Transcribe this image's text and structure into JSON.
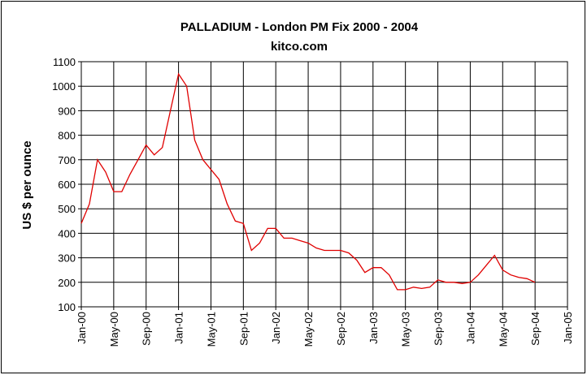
{
  "chart_data": {
    "type": "line",
    "title": "PALLADIUM - London PM Fix 2000 - 2004",
    "subtitle": "kitco.com",
    "y_label": "US $ per ounce",
    "x": [
      "2000-01",
      "2000-02",
      "2000-03",
      "2000-04",
      "2000-05",
      "2000-06",
      "2000-07",
      "2000-08",
      "2000-09",
      "2000-10",
      "2000-11",
      "2000-12",
      "2001-01",
      "2001-02",
      "2001-03",
      "2001-04",
      "2001-05",
      "2001-06",
      "2001-07",
      "2001-08",
      "2001-09",
      "2001-10",
      "2001-11",
      "2001-12",
      "2002-01",
      "2002-02",
      "2002-03",
      "2002-04",
      "2002-05",
      "2002-06",
      "2002-07",
      "2002-08",
      "2002-09",
      "2002-10",
      "2002-11",
      "2002-12",
      "2003-01",
      "2003-02",
      "2003-03",
      "2003-04",
      "2003-05",
      "2003-06",
      "2003-07",
      "2003-08",
      "2003-09",
      "2003-10",
      "2003-11",
      "2003-12",
      "2004-01",
      "2004-02",
      "2004-03",
      "2004-04",
      "2004-05",
      "2004-06",
      "2004-07",
      "2004-08",
      "2004-09"
    ],
    "series": [
      {
        "name": "Palladium",
        "color": "#e00000",
        "values": [
          440,
          520,
          700,
          650,
          570,
          570,
          640,
          700,
          760,
          720,
          750,
          900,
          1050,
          1000,
          780,
          700,
          660,
          620,
          520,
          450,
          440,
          330,
          360,
          420,
          420,
          380,
          380,
          370,
          360,
          340,
          330,
          330,
          330,
          320,
          290,
          240,
          260,
          260,
          230,
          170,
          170,
          180,
          175,
          180,
          210,
          200,
          200,
          195,
          200,
          230,
          270,
          310,
          250,
          230,
          220,
          215,
          200
        ]
      }
    ],
    "xlim": [
      "2000-01",
      "2005-01"
    ],
    "xticks": [
      {
        "value": "2000-01",
        "label": "Jan-00"
      },
      {
        "value": "2000-05",
        "label": "May-00"
      },
      {
        "value": "2000-09",
        "label": "Sep-00"
      },
      {
        "value": "2001-01",
        "label": "Jan-01"
      },
      {
        "value": "2001-05",
        "label": "May-01"
      },
      {
        "value": "2001-09",
        "label": "Sep-01"
      },
      {
        "value": "2002-01",
        "label": "Jan-02"
      },
      {
        "value": "2002-05",
        "label": "May-02"
      },
      {
        "value": "2002-09",
        "label": "Sep-02"
      },
      {
        "value": "2003-01",
        "label": "Jan-03"
      },
      {
        "value": "2003-05",
        "label": "May-03"
      },
      {
        "value": "2003-09",
        "label": "Sep-03"
      },
      {
        "value": "2004-01",
        "label": "Jan-04"
      },
      {
        "value": "2004-05",
        "label": "May-04"
      },
      {
        "value": "2004-09",
        "label": "Sep-04"
      },
      {
        "value": "2005-01",
        "label": "Jan-05"
      }
    ],
    "ylim": [
      100,
      1100
    ],
    "yticks": [
      100,
      200,
      300,
      400,
      500,
      600,
      700,
      800,
      900,
      1000,
      1100
    ],
    "grid": true
  }
}
